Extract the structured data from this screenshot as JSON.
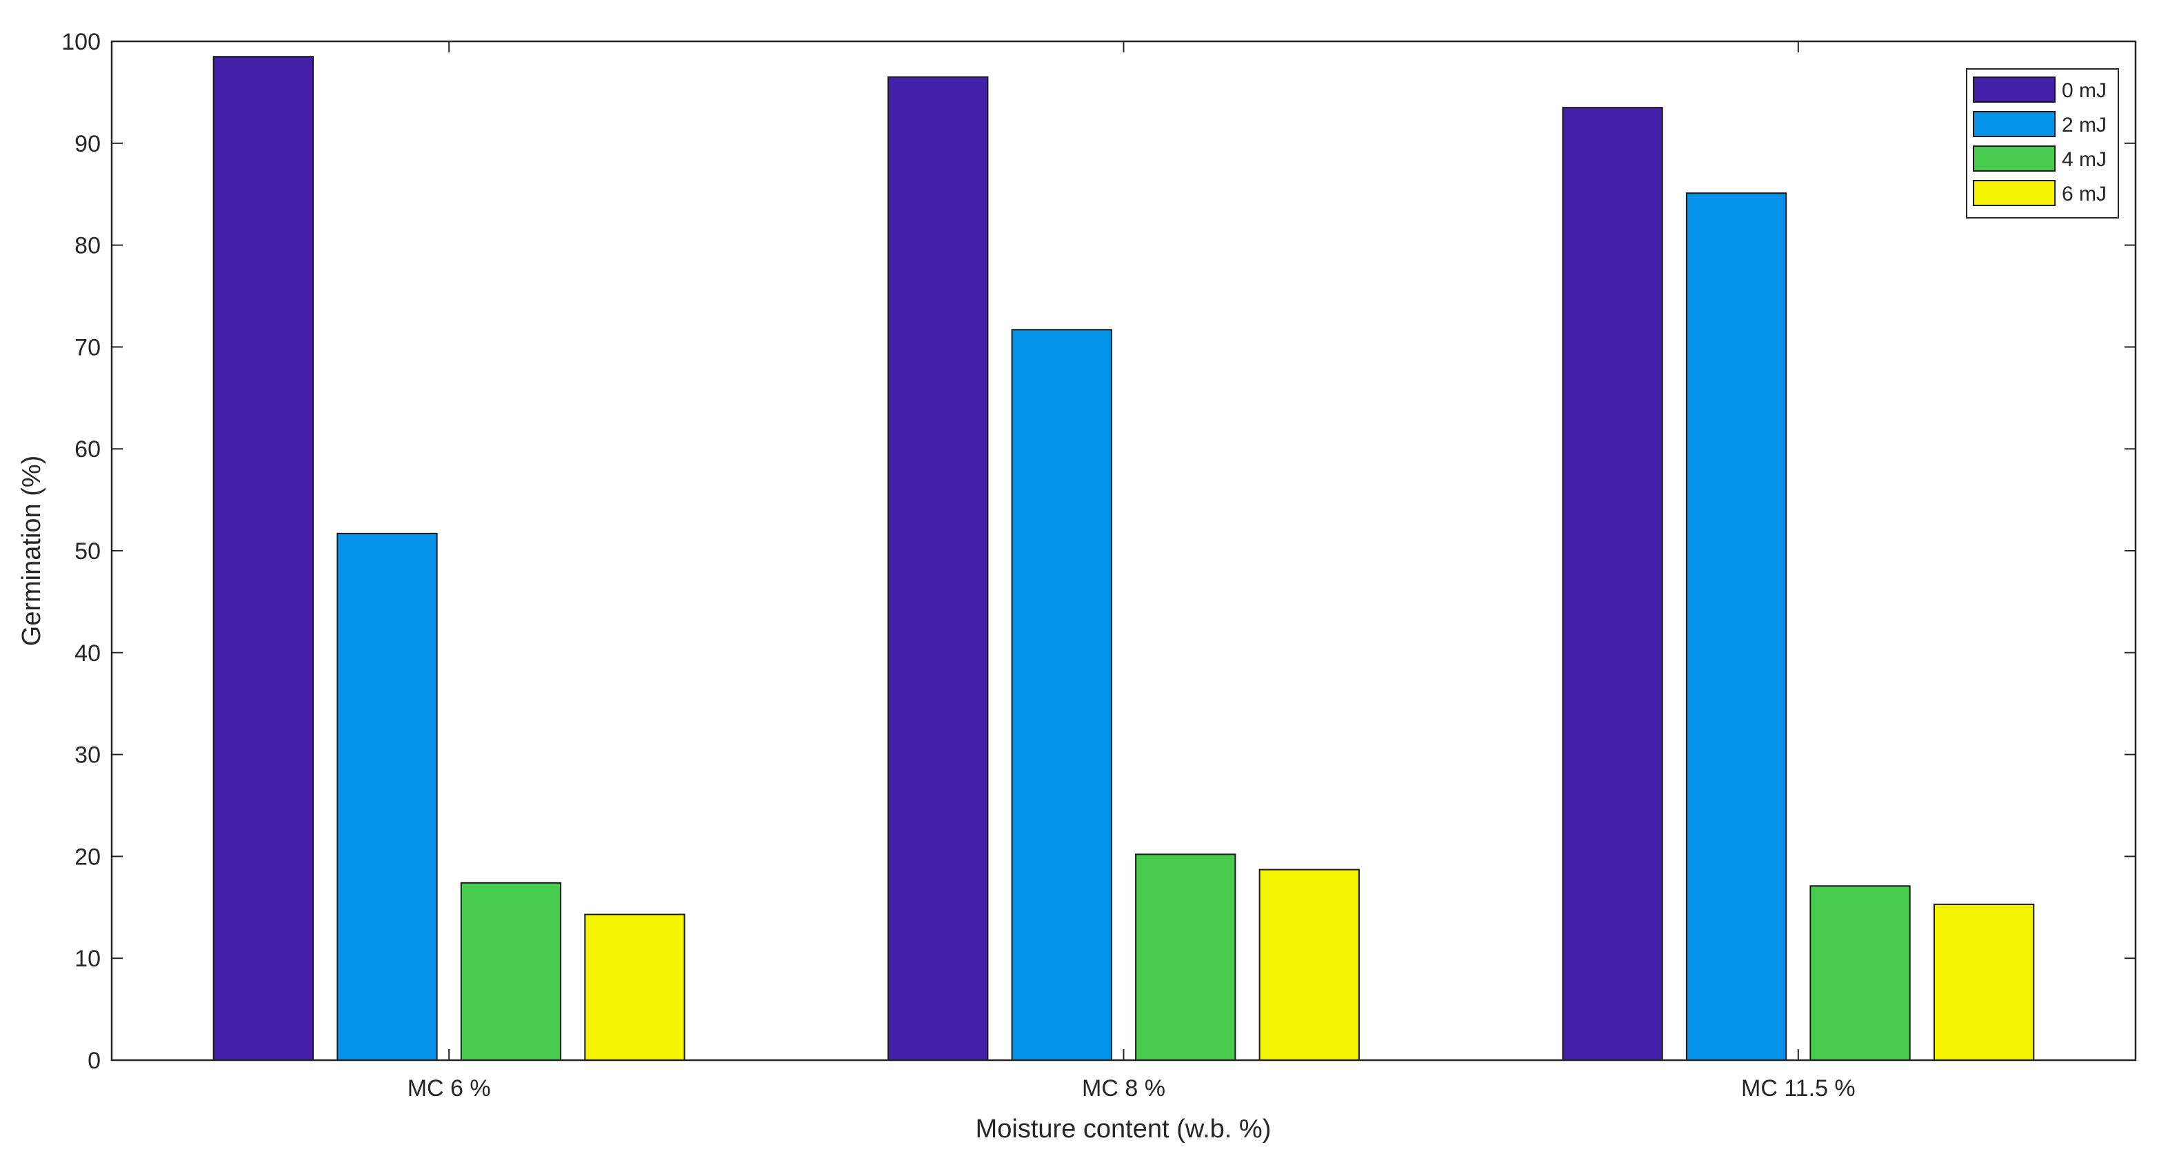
{
  "chart_data": {
    "type": "bar",
    "title": "",
    "xlabel": "Moisture content (w.b. %)",
    "ylabel": "Germination (%)",
    "categories": [
      "MC 6 %",
      "MC 8 %",
      "MC 11.5 %"
    ],
    "ylim": [
      0,
      100
    ],
    "yticks": [
      0,
      10,
      20,
      30,
      40,
      50,
      60,
      70,
      80,
      90,
      100
    ],
    "grid": false,
    "legend_position": "top-right",
    "series": [
      {
        "name": "0 mJ",
        "color": "#4220a8",
        "values": [
          98.5,
          96.5,
          93.5
        ]
      },
      {
        "name": "2 mJ",
        "color": "#0593ea",
        "values": [
          51.7,
          71.7,
          85.1
        ]
      },
      {
        "name": "4 mJ",
        "color": "#47cc4d",
        "values": [
          17.4,
          20.2,
          17.1
        ]
      },
      {
        "name": "6 mJ",
        "color": "#f5f400",
        "values": [
          14.3,
          18.7,
          15.3
        ]
      }
    ]
  }
}
